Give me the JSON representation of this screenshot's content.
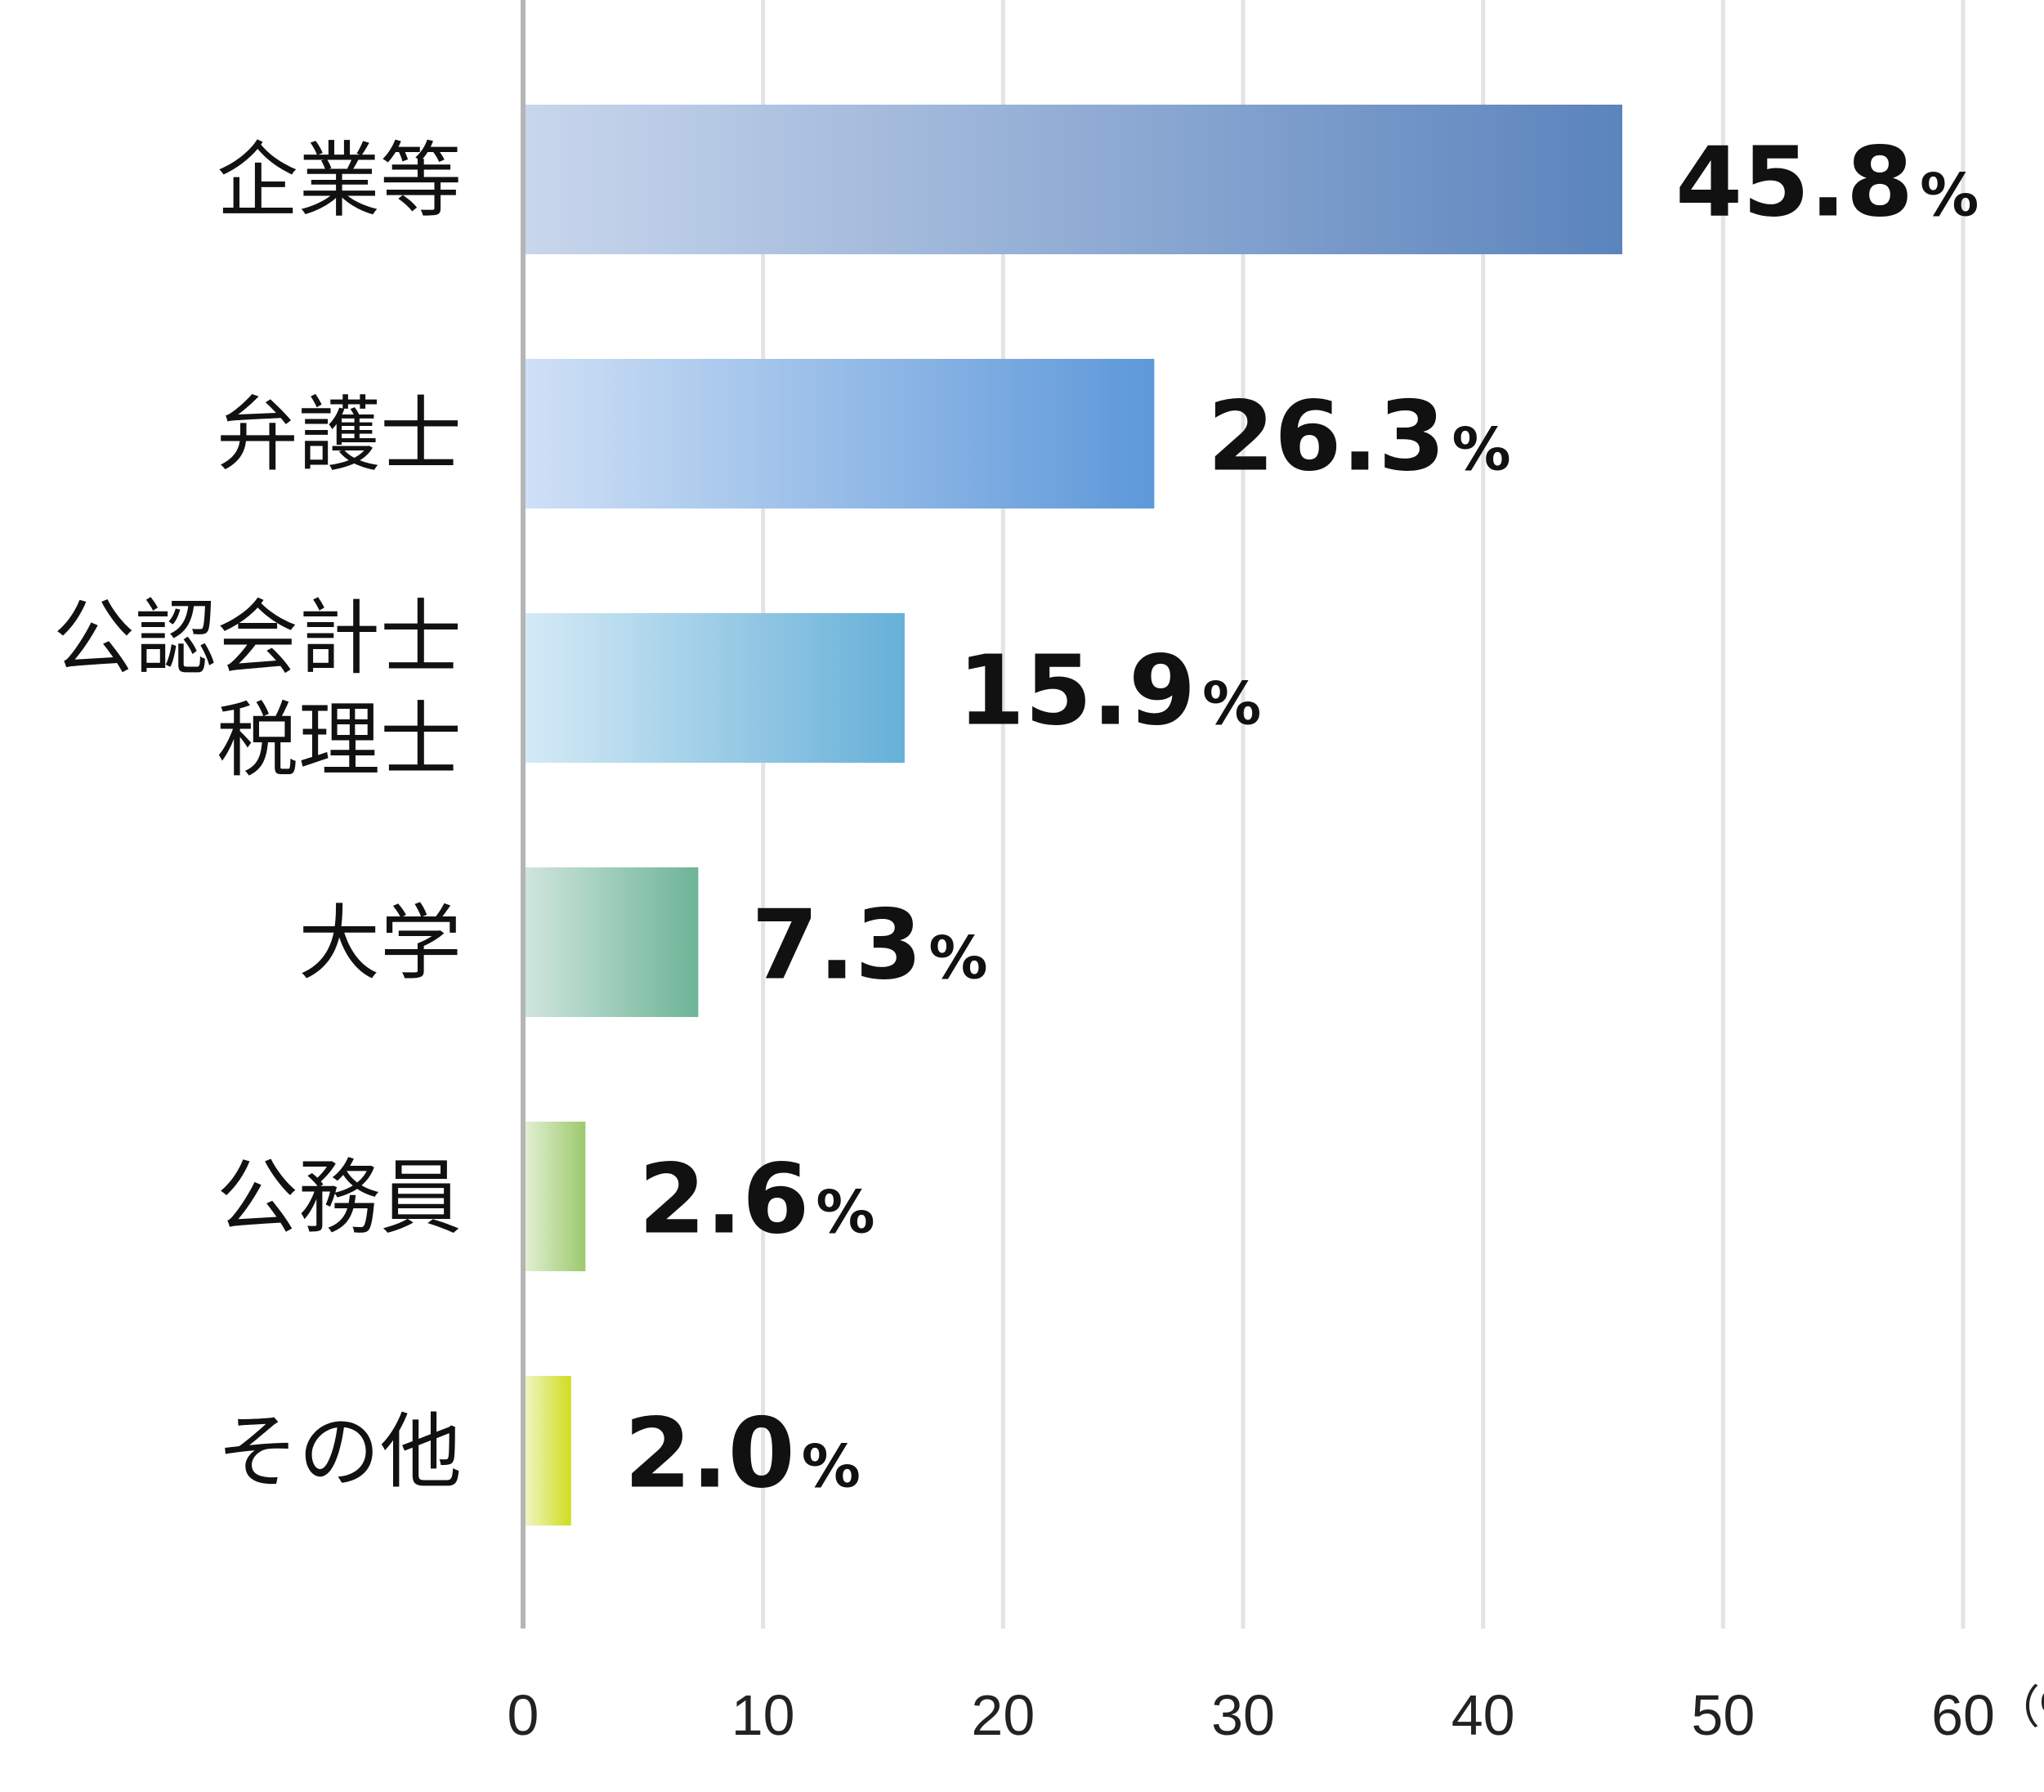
{
  "chart_data": {
    "type": "bar",
    "orientation": "horizontal",
    "categories": [
      [
        "企業等"
      ],
      [
        "弁護士"
      ],
      [
        "公認会計士",
        "税理士"
      ],
      [
        "大学"
      ],
      [
        "公務員"
      ],
      [
        "その他"
      ]
    ],
    "values": [
      45.8,
      26.3,
      15.9,
      7.3,
      2.6,
      2.0
    ],
    "value_labels": [
      "45.8",
      "26.3",
      "15.9",
      "7.3",
      "2.6",
      "2.0"
    ],
    "value_unit": "%",
    "xlim": [
      0,
      60
    ],
    "x_ticks": [
      "0",
      "10",
      "20",
      "30",
      "40",
      "50",
      "60"
    ],
    "x_unit_label": "（%）",
    "grid": true,
    "colors": [
      {
        "start": "#c8d6ec",
        "end": "#5b84bd"
      },
      {
        "start": "#cfe0f6",
        "end": "#5d98d9"
      },
      {
        "start": "#d4eaf6",
        "end": "#66b0d8"
      },
      {
        "start": "#cfe5dd",
        "end": "#6db497"
      },
      {
        "start": "#e2efd3",
        "end": "#9cc96c"
      },
      {
        "start": "#f0f5c0",
        "end": "#cfdd1f"
      }
    ]
  }
}
